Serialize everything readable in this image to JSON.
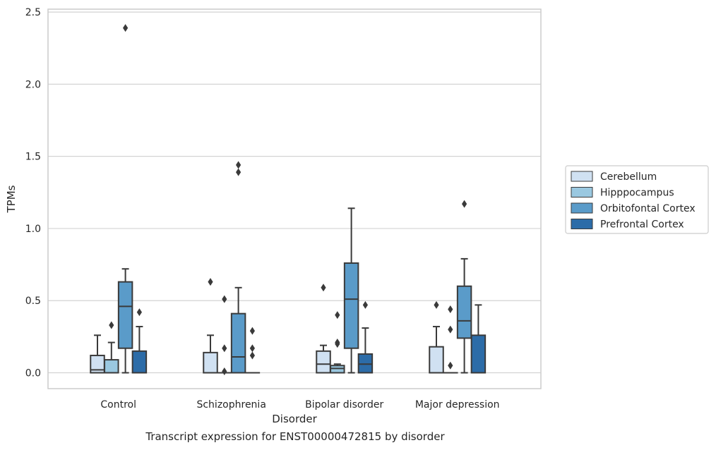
{
  "caption": "Transcript expression for ENST00000472815 by disorder",
  "chart_data": {
    "type": "boxplot",
    "xlabel": "Disorder",
    "ylabel": "TPMs",
    "ylim": [
      -0.11,
      2.52
    ],
    "yticks": [
      0.0,
      0.5,
      1.0,
      1.5,
      2.0,
      2.5
    ],
    "ytick_labels": [
      "0.0",
      "0.5",
      "1.0",
      "1.5",
      "2.0",
      "2.5"
    ],
    "grid": "horizontal",
    "legend_position": "right",
    "categories": [
      "Control",
      "Schizophrenia",
      "Bipolar disorder",
      "Major depression"
    ],
    "series": [
      {
        "name": "Cerebellum",
        "color": "#d0e1f2",
        "boxes": [
          {
            "whislo": 0.0,
            "q1": 0.0,
            "med": 0.02,
            "q3": 0.12,
            "whishi": 0.26,
            "fliers": []
          },
          {
            "whislo": 0.0,
            "q1": 0.0,
            "med": 0.0,
            "q3": 0.14,
            "whishi": 0.26,
            "fliers": [
              0.63
            ]
          },
          {
            "whislo": 0.0,
            "q1": 0.0,
            "med": 0.06,
            "q3": 0.15,
            "whishi": 0.19,
            "fliers": [
              0.59
            ]
          },
          {
            "whislo": 0.0,
            "q1": 0.0,
            "med": 0.0,
            "q3": 0.18,
            "whishi": 0.32,
            "fliers": [
              0.47
            ]
          }
        ]
      },
      {
        "name": "Hipppocampus",
        "color": "#9ac8e0",
        "boxes": [
          {
            "whislo": 0.0,
            "q1": 0.0,
            "med": 0.0,
            "q3": 0.09,
            "whishi": 0.21,
            "fliers": [
              0.33
            ]
          },
          {
            "whislo": 0.0,
            "q1": 0.0,
            "med": 0.0,
            "q3": 0.0,
            "whishi": 0.0,
            "fliers": [
              0.01,
              0.17,
              0.51
            ]
          },
          {
            "whislo": 0.0,
            "q1": 0.0,
            "med": 0.03,
            "q3": 0.05,
            "whishi": 0.06,
            "fliers": [
              0.2,
              0.21,
              0.4
            ]
          },
          {
            "whislo": 0.0,
            "q1": 0.0,
            "med": 0.0,
            "q3": 0.0,
            "whishi": 0.0,
            "fliers": [
              0.05,
              0.3,
              0.44
            ]
          }
        ]
      },
      {
        "name": "Orbitofontal Cortex",
        "color": "#5a9bc9",
        "boxes": [
          {
            "whislo": 0.0,
            "q1": 0.17,
            "med": 0.46,
            "q3": 0.63,
            "whishi": 0.72,
            "fliers": [
              2.39
            ]
          },
          {
            "whislo": 0.0,
            "q1": 0.0,
            "med": 0.11,
            "q3": 0.41,
            "whishi": 0.59,
            "fliers": [
              1.39,
              1.44
            ]
          },
          {
            "whislo": 0.0,
            "q1": 0.17,
            "med": 0.51,
            "q3": 0.76,
            "whishi": 1.14,
            "fliers": []
          },
          {
            "whislo": 0.0,
            "q1": 0.24,
            "med": 0.36,
            "q3": 0.6,
            "whishi": 0.79,
            "fliers": [
              1.17
            ]
          }
        ]
      },
      {
        "name": "Prefrontal Cortex",
        "color": "#2c6ca8",
        "boxes": [
          {
            "whislo": 0.0,
            "q1": 0.0,
            "med": 0.0,
            "q3": 0.15,
            "whishi": 0.32,
            "fliers": [
              0.42
            ]
          },
          {
            "whislo": 0.0,
            "q1": 0.0,
            "med": 0.0,
            "q3": 0.0,
            "whishi": 0.0,
            "fliers": [
              0.12,
              0.17,
              0.29
            ]
          },
          {
            "whislo": 0.0,
            "q1": 0.0,
            "med": 0.06,
            "q3": 0.13,
            "whishi": 0.31,
            "fliers": [
              0.47
            ]
          },
          {
            "whislo": 0.0,
            "q1": 0.0,
            "med": 0.0,
            "q3": 0.26,
            "whishi": 0.47,
            "fliers": []
          }
        ]
      }
    ]
  }
}
